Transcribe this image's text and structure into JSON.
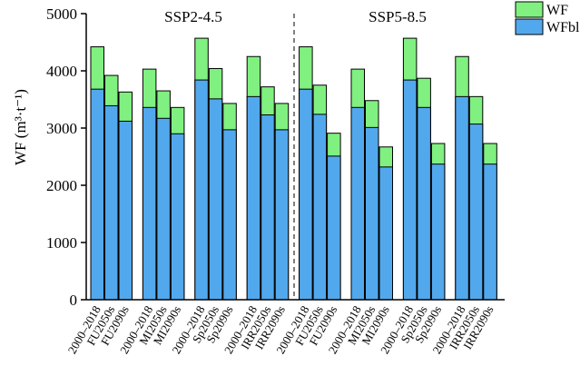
{
  "chart_data": {
    "type": "bar",
    "ylabel": "WF (m³·t⁻¹)",
    "annotations": [
      "SSP2-4.5",
      "SSP5-8.5"
    ],
    "categories": [
      "2000–2018",
      "FU2050s",
      "FU2090s",
      "2000–2018",
      "MI2050s",
      "MI2090s",
      "2000–2018",
      "Sp2050s",
      "Sp2090s",
      "2000–2018",
      "IRR2050s",
      "IRR2090s",
      "2000–2018",
      "FU2050s",
      "FU2090s",
      "2000–2018",
      "MI2050s",
      "MI2090s",
      "2000–2018",
      "Sp2050s",
      "Sp2090s",
      "2000–2018",
      "IRR2050s",
      "IRR2090s"
    ],
    "series": [
      {
        "name": "WF",
        "color": "#80f080",
        "values": [
          4420,
          3920,
          3630,
          4030,
          3650,
          3360,
          4570,
          4040,
          3430,
          4250,
          3720,
          3430,
          4420,
          3750,
          2910,
          4030,
          3480,
          2670,
          4570,
          3870,
          2730,
          4250,
          3550,
          2730
        ]
      },
      {
        "name": "WFbl",
        "color": "#52a8ec",
        "values": [
          3680,
          3390,
          3120,
          3360,
          3170,
          2900,
          3840,
          3510,
          2970,
          3550,
          3230,
          2970,
          3680,
          3240,
          2510,
          3360,
          3010,
          2320,
          3840,
          3360,
          2370,
          3550,
          3070,
          2370
        ]
      }
    ],
    "ylim": [
      0,
      5000
    ],
    "yticks": [
      0,
      1000,
      2000,
      3000,
      4000,
      5000
    ],
    "legend": "upper right"
  }
}
